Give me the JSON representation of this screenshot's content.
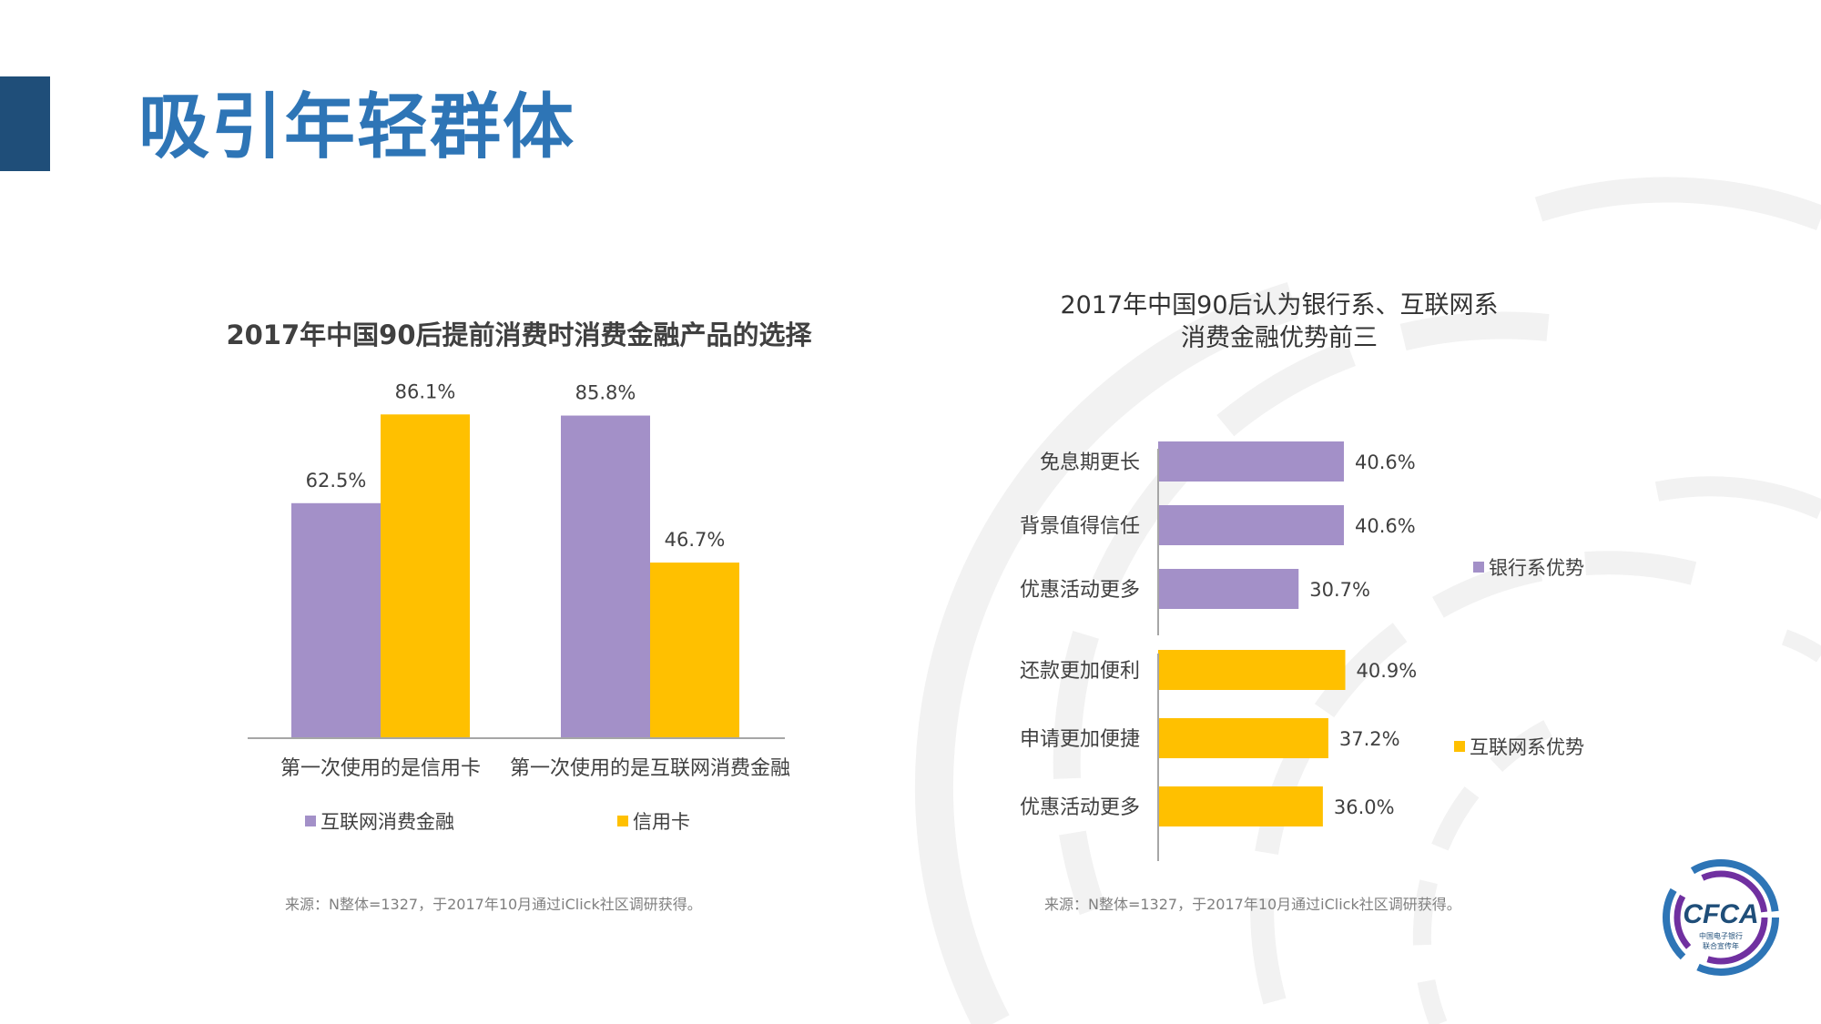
{
  "page": {
    "title": "吸引年轻群体"
  },
  "colors": {
    "accent_dark": "#1f4e79",
    "title_blue": "#2e75b6",
    "purple": "#a390c8",
    "gold": "#ffc000",
    "arc_gray": "#f2f2f2"
  },
  "chart_data": [
    {
      "type": "bar",
      "title": "2017年中国90后提前消费时消费金融产品的选择",
      "categories": [
        "第一次使用的是信用卡",
        "第一次使用的是互联网消费金融"
      ],
      "series": [
        {
          "name": "互联网消费金融",
          "values": [
            62.5,
            85.8
          ],
          "labels": [
            "62.5%",
            "85.8%"
          ]
        },
        {
          "name": "信用卡",
          "values": [
            86.1,
            46.7
          ],
          "labels": [
            "86.1%",
            "46.7%"
          ]
        }
      ],
      "ylim": [
        0,
        100
      ],
      "grid": false,
      "legend_position": "bottom",
      "source": "来源：N整体=1327，于2017年10月通过iClick社区调研获得。"
    },
    {
      "type": "bar",
      "orientation": "horizontal",
      "title_lines": [
        "2017年中国90后认为银行系、互联网系",
        "消费金融优势前三"
      ],
      "groups": [
        {
          "name": "银行系优势",
          "categories": [
            "免息期更长",
            "背景值得信任",
            "优惠活动更多"
          ],
          "values": [
            40.6,
            40.6,
            30.7
          ],
          "labels": [
            "40.6%",
            "40.6%",
            "30.7%"
          ]
        },
        {
          "name": "互联网系优势",
          "categories": [
            "还款更加便利",
            "申请更加便捷",
            "优惠活动更多"
          ],
          "values": [
            40.9,
            37.2,
            36.0
          ],
          "labels": [
            "40.9%",
            "37.2%",
            "36.0%"
          ]
        }
      ],
      "xlim": [
        0,
        100
      ],
      "grid": false,
      "legend_position": "right",
      "source": "来源：N整体=1327，于2017年10月通过iClick社区调研获得。"
    }
  ],
  "logo": {
    "text": "CFCA",
    "subtitle_1": "中国电子银行",
    "subtitle_2": "联合宣传年"
  }
}
